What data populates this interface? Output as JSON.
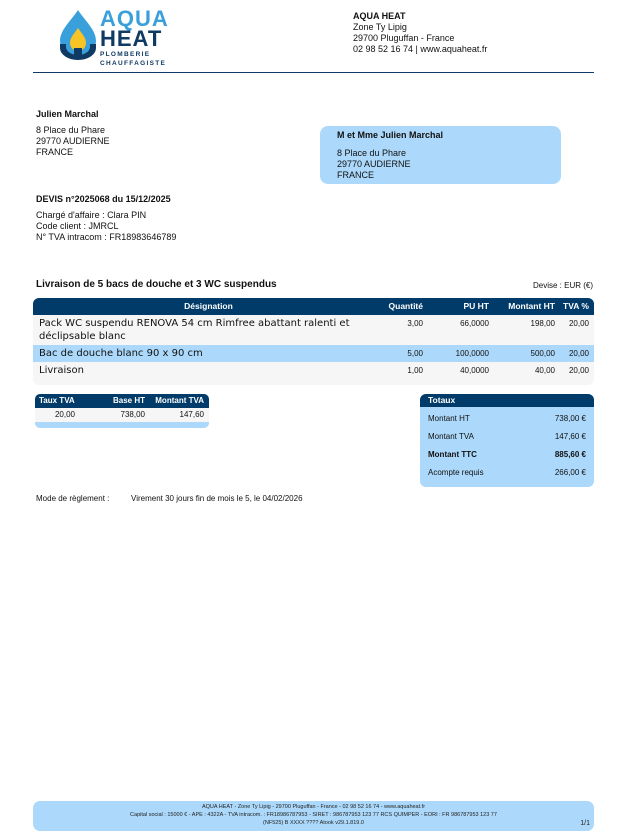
{
  "company": {
    "logo_line1": "AQUA",
    "logo_line2": "HEAT",
    "logo_sub1": "PLOMBERIE",
    "logo_sub2": "CHAUFFAGISTE",
    "name": "AQUA HEAT",
    "street": "Zone Ty Lipig",
    "city": "29700 Pluguffan - France",
    "contact": "02 98 52 16 74 | www.aquaheat.fr"
  },
  "client": {
    "name": "Julien Marchal",
    "address": [
      "8 Place du Phare",
      "29770 AUDIERNE",
      "FRANCE"
    ]
  },
  "recipient": {
    "name": "M et Mme Julien Marchal",
    "address": [
      "8 Place du Phare",
      "29770 AUDIERNE",
      "FRANCE"
    ]
  },
  "quote": {
    "title": "DEVIS n°2025068 du 15/12/2025",
    "manager": "Chargé d'affaire : Clara PIN",
    "client_code": "Code client : JMRCL",
    "vat_number": "N° TVA intracom : FR18983646789",
    "subject": "Livraison de 5 bacs de douche et 3 WC suspendus",
    "currency": "Devise : EUR (€)"
  },
  "items_table": {
    "headers": [
      "Désignation",
      "Quantité",
      "PU HT",
      "Montant HT",
      "TVA %"
    ],
    "rows": [
      {
        "designation": "Pack WC suspendu RENOVA 54 cm Rimfree abattant ralenti et déclipsable blanc",
        "qty": "3,00",
        "pu": "66,0000",
        "total": "198,00",
        "tva": "20,00"
      },
      {
        "designation": "Bac de douche blanc 90 x 90 cm",
        "qty": "5,00",
        "pu": "100,0000",
        "total": "500,00",
        "tva": "20,00"
      },
      {
        "designation": "Livraison",
        "qty": "1,00",
        "pu": "40,0000",
        "total": "40,00",
        "tva": "20,00"
      }
    ]
  },
  "vat_table": {
    "headers": [
      "Taux TVA",
      "Base HT",
      "Montant TVA"
    ],
    "row": [
      "20,00",
      "738,00",
      "147,60"
    ]
  },
  "totals": {
    "title": "Totaux",
    "rows": [
      {
        "label": "Montant HT",
        "value": "738,00 €"
      },
      {
        "label": "Montant TVA",
        "value": "147,60 €"
      },
      {
        "label": "Montant TTC",
        "value": "885,60 €"
      },
      {
        "label": "Acompte requis",
        "value": "266,00 €"
      }
    ]
  },
  "payment": {
    "label": "Mode de règlement :",
    "value": "Virement 30 jours fin de mois le 5, le 04/02/2026"
  },
  "footer": {
    "line1": "AQUA HEAT - Zone Ty Lipig - 29700 Pluguffan - France - 02 98 52 16 74  - www.aquaheat.fr",
    "line2": "Capital social : 15000 € - APE : 4322A - TVA intracom. : FR18986787953 - SIRET : 986787953 123 77 RCS QUIMPER - EORI : FR 986787953 123 77",
    "line3": "(NF525) B XXXX ???? Atook v29.1.819.0",
    "page": "1/1"
  },
  "colors": {
    "navy": "#003b69",
    "light_blue": "#acd9fb",
    "logo_blue": "#3aa0dc",
    "flame": "#f7c325"
  }
}
